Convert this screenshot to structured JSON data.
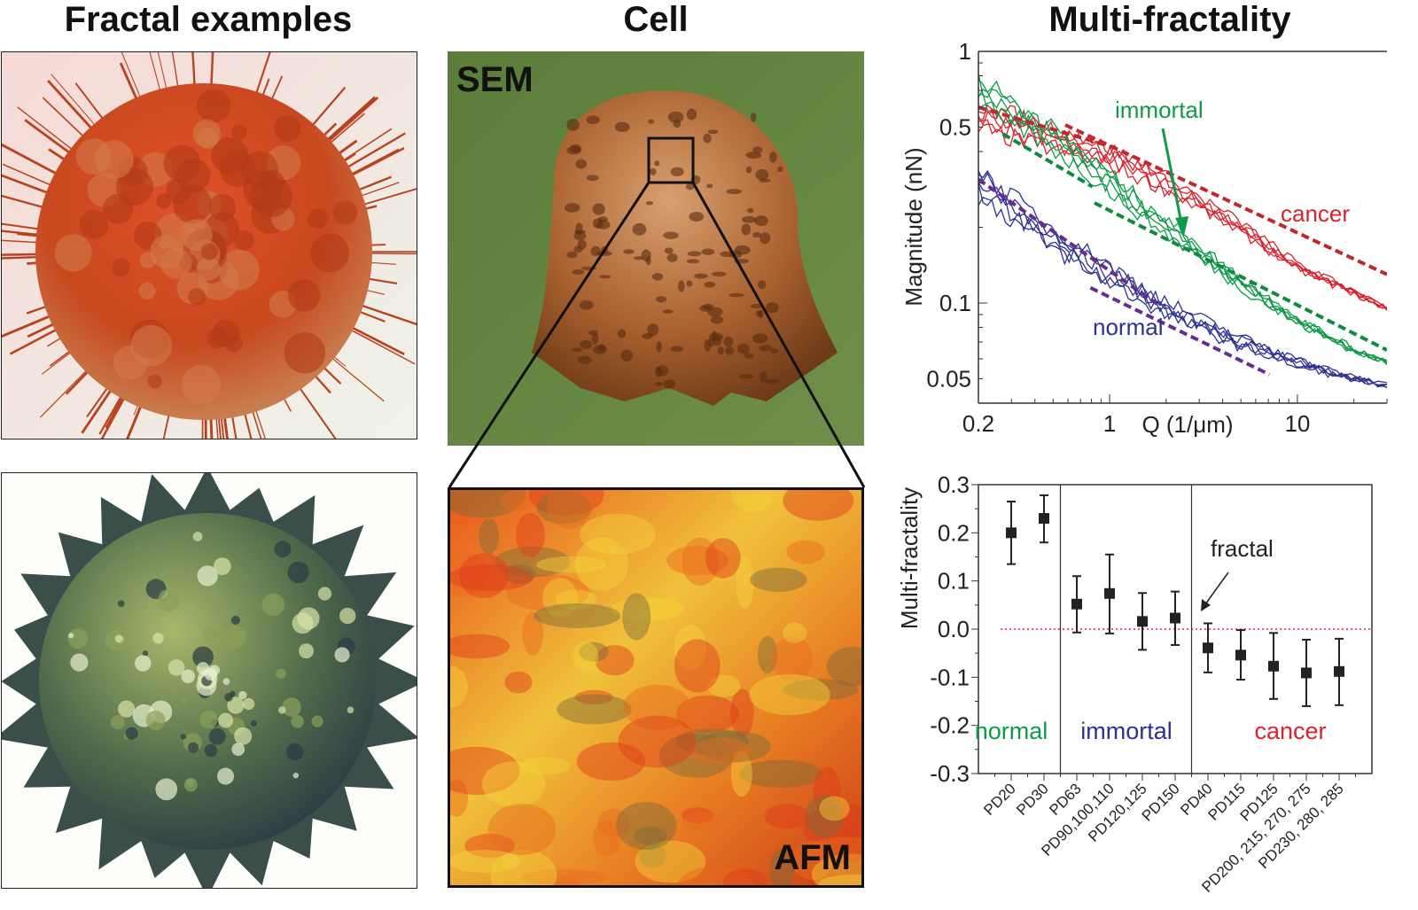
{
  "titles": {
    "fractal_examples": "Fractal examples",
    "cell": "Cell",
    "multi_fractality": "Multi-fractality"
  },
  "panels": {
    "sem_label": "SEM",
    "afm_label": "AFM"
  },
  "colors": {
    "cancer": "#d9232e",
    "immortal": "#0f9a48",
    "normal": "#2e3192",
    "normal_group_label": "#0f9a48",
    "immortal_group_label": "#2e3192",
    "cancer_group_label": "#d9232e",
    "fit_cancer": "#c1272d",
    "fit_immortal": "#0f8a40",
    "fit_normal": "#662d91",
    "zero_line": "#d9232e"
  },
  "chart_data": [
    {
      "type": "line",
      "xlabel": "Q (1/μm)",
      "ylabel": "Magnitude (nN)",
      "xscale": "log",
      "yscale": "log",
      "xlim": [
        0.2,
        30
      ],
      "ylim": [
        0.04,
        1
      ],
      "xticks": [
        "0.2",
        "1",
        "10"
      ],
      "yticks": [
        "1",
        "0.5",
        "0.1",
        "0.05"
      ],
      "grid": false,
      "annotations": [
        "immortal",
        "cancer",
        "normal"
      ],
      "series": [
        {
          "name": "cancer",
          "x": [
            0.2,
            0.5,
            1,
            2,
            5,
            10,
            20,
            30
          ],
          "y": [
            0.55,
            0.45,
            0.38,
            0.3,
            0.2,
            0.14,
            0.11,
            0.095
          ]
        },
        {
          "name": "immortal",
          "x": [
            0.2,
            0.5,
            1,
            2,
            5,
            10,
            20,
            30
          ],
          "y": [
            0.7,
            0.45,
            0.3,
            0.2,
            0.12,
            0.085,
            0.065,
            0.058
          ]
        },
        {
          "name": "normal",
          "x": [
            0.2,
            0.5,
            1,
            2,
            5,
            10,
            20,
            30
          ],
          "y": [
            0.3,
            0.18,
            0.13,
            0.095,
            0.07,
            0.058,
            0.05,
            0.047
          ]
        }
      ],
      "fits": [
        {
          "group": "cancer",
          "x": [
            0.2,
            1
          ],
          "y": [
            0.6,
            0.42
          ]
        },
        {
          "group": "cancer",
          "x": [
            0.58,
            30
          ],
          "y": [
            0.51,
            0.13
          ]
        },
        {
          "group": "immortal",
          "x": [
            0.27,
            0.81
          ],
          "y": [
            0.47,
            0.29
          ]
        },
        {
          "group": "immortal",
          "x": [
            0.83,
            30
          ],
          "y": [
            0.25,
            0.065
          ]
        },
        {
          "group": "normal",
          "x": [
            0.2,
            1.8
          ],
          "y": [
            0.31,
            0.099
          ]
        },
        {
          "group": "normal",
          "x": [
            0.79,
            7.1
          ],
          "y": [
            0.115,
            0.052
          ]
        }
      ]
    },
    {
      "type": "scatter",
      "ylabel": "Multi-fractality",
      "ylim": [
        -0.3,
        0.3
      ],
      "yticks": [
        "0.3",
        "0.2",
        "0.1",
        "0.0",
        "-0.1",
        "-0.2",
        "-0.3"
      ],
      "reference_line": 0.0,
      "annotation": "fractal",
      "groups": [
        {
          "name": "normal",
          "categories": [
            "PD20",
            "PD30"
          ],
          "values": [
            0.2,
            0.23
          ],
          "err_low": [
            0.135,
            0.18
          ],
          "err_high": [
            0.265,
            0.278
          ]
        },
        {
          "name": "immortal",
          "categories": [
            "PD63",
            "PD90,100,110",
            "PD120,125",
            "PD150"
          ],
          "values": [
            0.052,
            0.074,
            0.016,
            0.023
          ],
          "err_low": [
            -0.007,
            -0.009,
            -0.043,
            -0.033
          ],
          "err_high": [
            0.11,
            0.155,
            0.075,
            0.078
          ]
        },
        {
          "name": "cancer",
          "categories": [
            "PD40",
            "PD115",
            "PD125",
            "PD200, 215, 270, 275",
            "PD230, 280, 285"
          ],
          "values": [
            -0.039,
            -0.054,
            -0.077,
            -0.091,
            -0.088
          ],
          "err_low": [
            -0.09,
            -0.105,
            -0.145,
            -0.16,
            -0.158
          ],
          "err_high": [
            0.012,
            -0.002,
            -0.008,
            -0.022,
            -0.02
          ]
        }
      ]
    }
  ]
}
